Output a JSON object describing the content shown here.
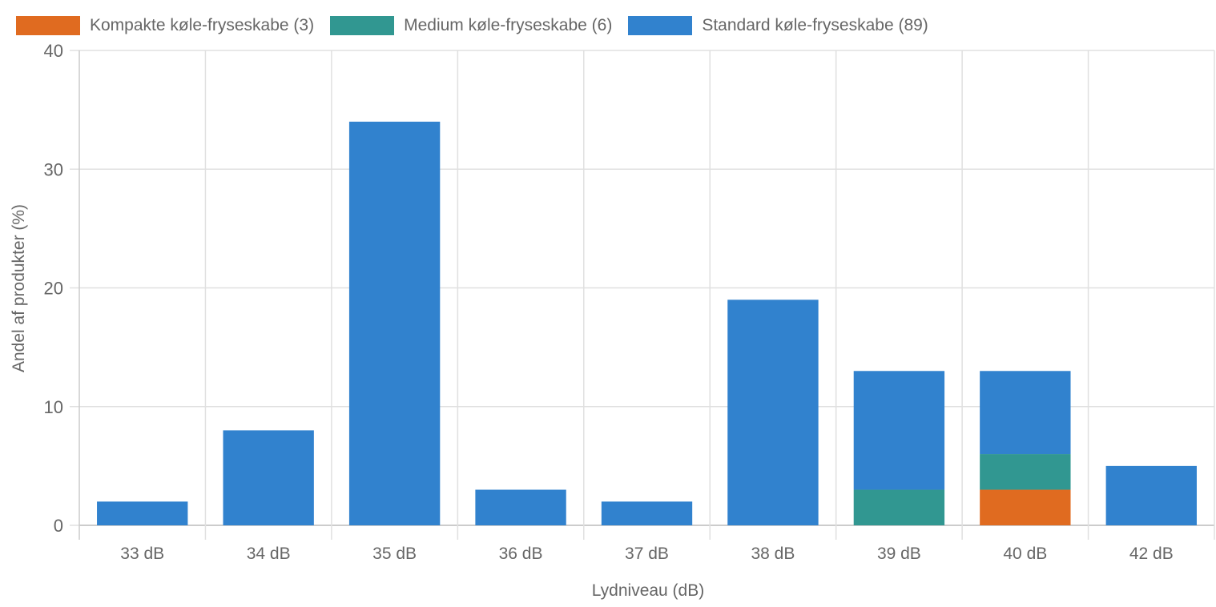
{
  "chart_data": {
    "type": "bar",
    "stacked": true,
    "title": "",
    "xlabel": "Lydniveau (dB)",
    "ylabel": "Andel af produkter (%)",
    "ylim": [
      0,
      40
    ],
    "yticks": [
      0,
      10,
      20,
      30,
      40
    ],
    "grid": true,
    "legend_position": "top",
    "categories": [
      "33 dB",
      "34 dB",
      "35 dB",
      "36 dB",
      "37 dB",
      "38 dB",
      "39 dB",
      "40 dB",
      "42 dB"
    ],
    "series": [
      {
        "name": "Kompakte køle-fryseskabe (3)",
        "color": "#e06b20",
        "values": [
          0,
          0,
          0,
          0,
          0,
          0,
          0,
          3,
          0
        ]
      },
      {
        "name": "Medium køle-fryseskabe (6)",
        "color": "#319791",
        "values": [
          0,
          0,
          0,
          0,
          0,
          0,
          3,
          3,
          0
        ]
      },
      {
        "name": "Standard køle-fryseskabe (89)",
        "color": "#3182ce",
        "values": [
          2,
          8,
          34,
          3,
          2,
          19,
          10,
          7,
          5
        ]
      }
    ]
  },
  "legend": [
    {
      "label": "Kompakte køle-fryseskabe (3)",
      "color": "#e06b20"
    },
    {
      "label": "Medium køle-fryseskabe (6)",
      "color": "#319791"
    },
    {
      "label": "Standard køle-fryseskabe (89)",
      "color": "#3182ce"
    }
  ],
  "axes": {
    "x_title": "Lydniveau (dB)",
    "y_title": "Andel af produkter (%)"
  }
}
